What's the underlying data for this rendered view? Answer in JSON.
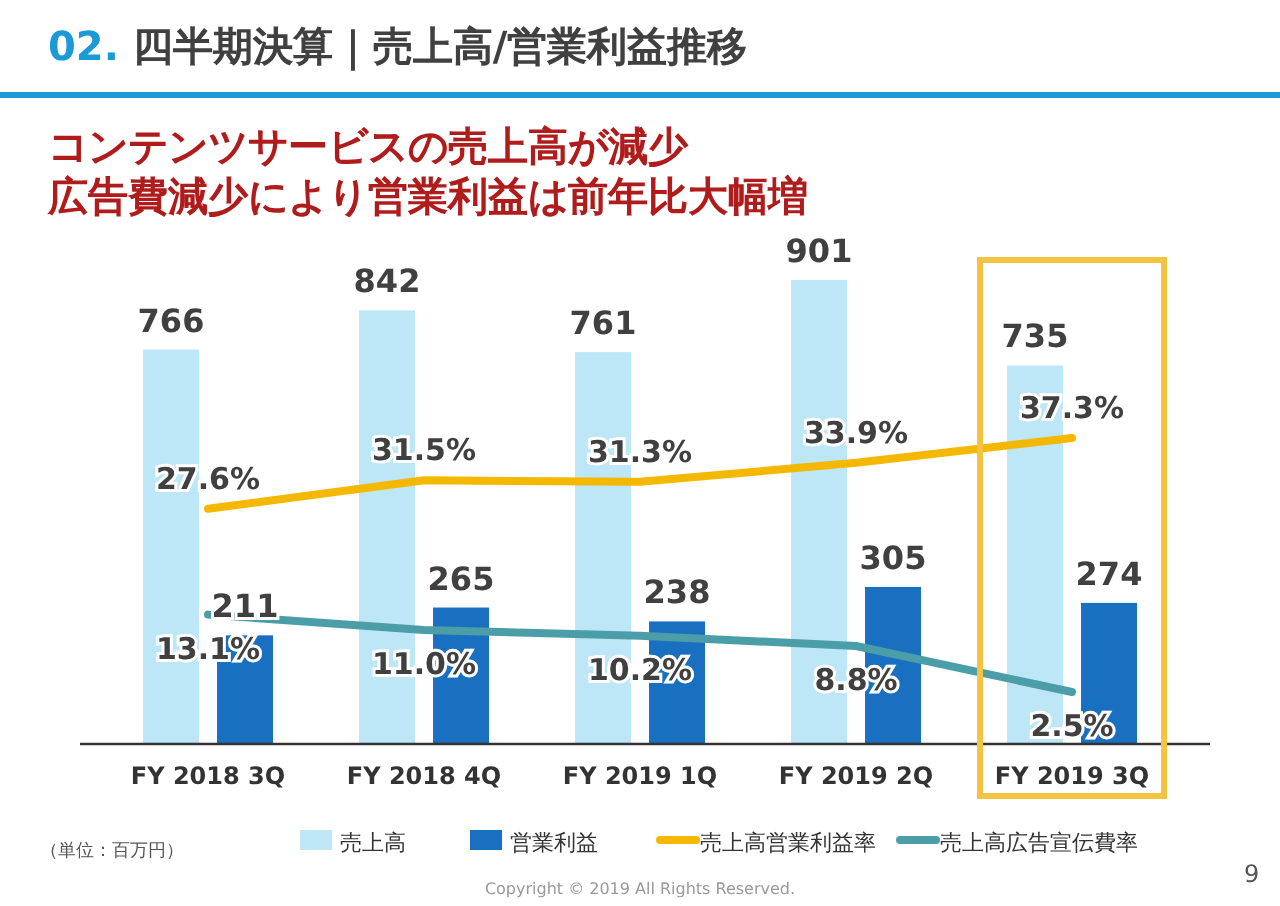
{
  "chart_data": {
    "type": "bar",
    "title": "02. 四半期決算｜売上高/営業利益推移",
    "subtitle": "コンテンツサービスの売上高が減少",
    "categories": [
      "FY 2018 3Q",
      "FY 2018 4Q",
      "FY 2019 1Q",
      "FY 2019 2Q",
      "FY 2019 3Q"
    ],
    "series": [
      {
        "name": "売上高",
        "color": "#bde6f7",
        "values": [
          766,
          842,
          761,
          901,
          735
        ]
      },
      {
        "name": "営業利益",
        "color": "#1a70c0",
        "values": [
          211,
          265,
          238,
          305,
          274
        ]
      },
      {
        "name": "売上高営業利益率",
        "type": "line",
        "axis": "y2",
        "color": "#f5b800",
        "values": [
          27.6,
          31.5,
          31.3,
          33.9,
          37.3
        ],
        "value_labels": [
          "27.6%",
          "31.5%",
          "31.3%",
          "33.9%",
          "37.3%"
        ]
      },
      {
        "name": "売上高広告宣伝費率",
        "type": "line",
        "axis": "y2",
        "color": "#4b9ea8",
        "values": [
          13.1,
          11.0,
          10.2,
          8.8,
          2.5
        ],
        "value_labels": [
          "13.1%",
          "11.0%",
          "10.2%",
          "8.8%",
          "2.5%"
        ]
      }
    ],
    "data_labels": true,
    "legend": "bottom",
    "marker": "none",
    "line_style": "solid",
    "annotations": [
      "広告費減少により営業利益は前年比大幅増",
      "（単位：百万円）",
      "Copyright © 2019 All Rights Reserved.",
      "9"
    ]
  }
}
